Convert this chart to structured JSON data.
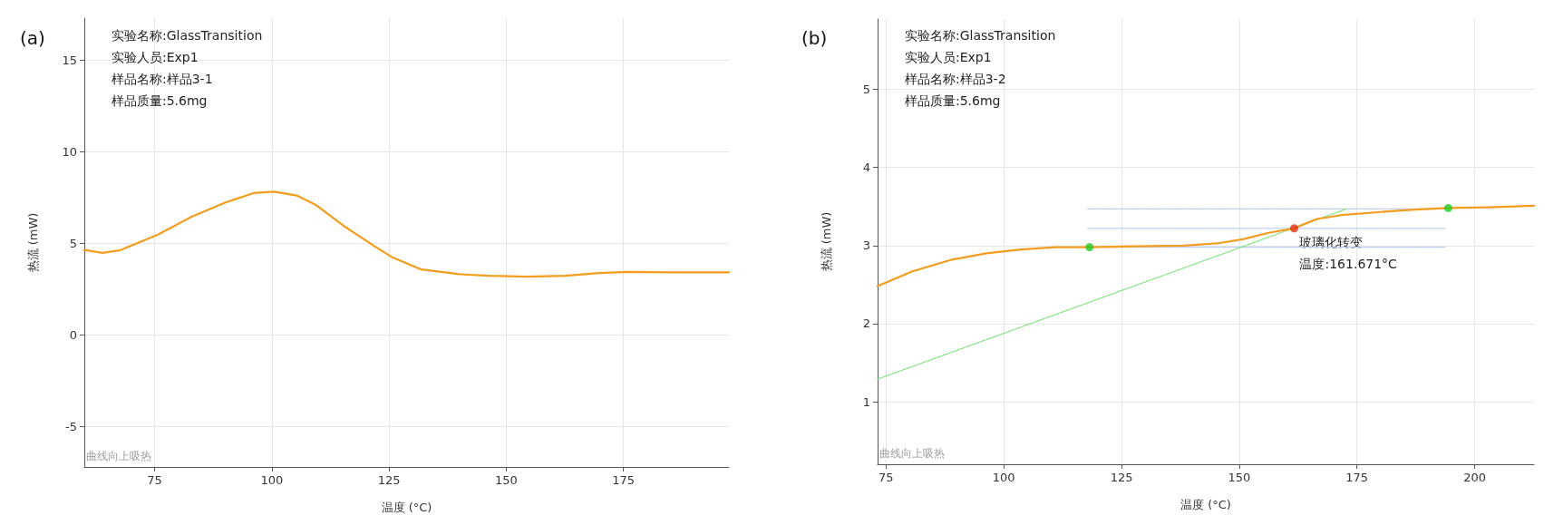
{
  "chart_data": [
    {
      "type": "line",
      "title": "(a)",
      "xlabel": "温度 (°C)",
      "ylabel": "热流 (mW)",
      "xlim": [
        60,
        197.5
      ],
      "xticks": [
        75,
        100,
        125,
        150,
        175
      ],
      "ylim": [
        -7.2,
        17.3
      ],
      "yticks": [
        -5,
        0,
        5,
        10,
        15
      ],
      "grid": true,
      "marker": "none",
      "line_style": "solid",
      "annotations": [
        "实验名称:GlassTransition",
        "实验人员:Exp1",
        "样品名称:样品3-1",
        "样品质量:5.6mg",
        "曲线向上吸热"
      ],
      "series": [
        {
          "color": "#f39c1e",
          "x": [
            60,
            63.9,
            67.5,
            75.7,
            82.8,
            90,
            96.1,
            100.5,
            105.3,
            109.4,
            115.5,
            121.7,
            125.8,
            131.9,
            140,
            146.3,
            154.5,
            162.6,
            169.8,
            175.9,
            185.2,
            197.5
          ],
          "values": [
            4.65,
            4.49,
            4.62,
            5.48,
            6.45,
            7.23,
            7.75,
            7.83,
            7.62,
            7.1,
            5.93,
            4.88,
            4.23,
            3.58,
            3.32,
            3.24,
            3.19,
            3.24,
            3.39,
            3.45,
            3.42,
            3.42
          ]
        }
      ]
    },
    {
      "type": "line",
      "title": "(b)",
      "xlabel": "温度 (°C)",
      "ylabel": "热流 (mW)",
      "xlim": [
        73.2,
        212.6
      ],
      "xticks": [
        75,
        100,
        125,
        150,
        175,
        200
      ],
      "ylim": [
        0.2,
        5.9
      ],
      "yticks": [
        1,
        2,
        3,
        4,
        5
      ],
      "grid": true,
      "marker": "none",
      "annotations": [
        "实验名称:GlassTransition",
        "实验人员:Exp1",
        "样品名称:样品3-2",
        "样品质量:5.6mg",
        "曲线向上吸热",
        {
          "text": "玻璃化转变",
          "x": 161.671,
          "y": 3.22
        },
        {
          "text": "温度:161.671°C",
          "x": 161.671,
          "y": 3.22
        }
      ],
      "series": [
        {
          "color": "#b4c8f0",
          "line_style": "dotted",
          "x": [
            117.8,
            193.7
          ],
          "values": [
            3.47,
            3.47
          ]
        },
        {
          "color": "#b4c8f0",
          "line_style": "dotted",
          "x": [
            117.8,
            193.7
          ],
          "values": [
            3.22,
            3.22
          ]
        },
        {
          "color": "#b4c8f0",
          "line_style": "dotted",
          "x": [
            117.8,
            193.7
          ],
          "values": [
            2.98,
            2.98
          ]
        },
        {
          "color": "#7be07b",
          "line_style": "dotted",
          "x": [
            73.2,
            172.8
          ],
          "values": [
            1.29,
            3.47
          ]
        },
        {
          "color": "#f39c1e",
          "line_style": "solid",
          "x": [
            73.2,
            80.6,
            89,
            96.3,
            103.7,
            111,
            118.2,
            127.7,
            138.2,
            145.5,
            150.8,
            156,
            161.6,
            166.5,
            171.7,
            180.1,
            187.4,
            194.4,
            203.1,
            212.6
          ],
          "values": [
            2.48,
            2.67,
            2.82,
            2.9,
            2.95,
            2.98,
            2.98,
            2.99,
            3,
            3.03,
            3.08,
            3.16,
            3.22,
            3.34,
            3.39,
            3.43,
            3.46,
            3.48,
            3.49,
            3.51
          ]
        },
        {
          "type": "scatter",
          "marker": "circle",
          "x": [
            118.2,
            161.671,
            194.4
          ],
          "values": [
            2.98,
            3.22,
            3.48
          ],
          "colors": [
            "#22cc22",
            "#e03010",
            "#22cc22"
          ]
        }
      ]
    }
  ]
}
